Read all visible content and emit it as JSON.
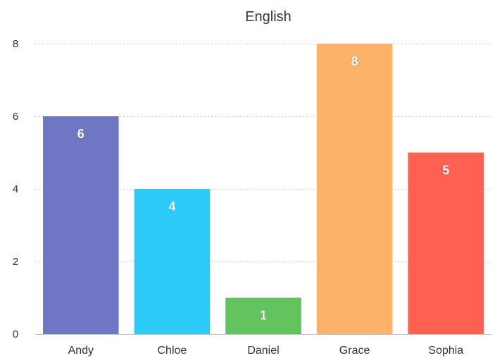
{
  "chart_data": {
    "type": "bar",
    "title": "English",
    "categories": [
      "Andy",
      "Chloe",
      "Daniel",
      "Grace",
      "Sophia"
    ],
    "values": [
      6,
      4,
      1,
      8,
      5
    ],
    "colors": [
      "#6f76c4",
      "#2ccbf7",
      "#63c35f",
      "#fdb26a",
      "#fe6151"
    ],
    "ylim": [
      0,
      8
    ],
    "yticks": [
      0,
      2,
      4,
      6,
      8
    ],
    "grid": true,
    "data_labels": true,
    "legend": "none"
  }
}
